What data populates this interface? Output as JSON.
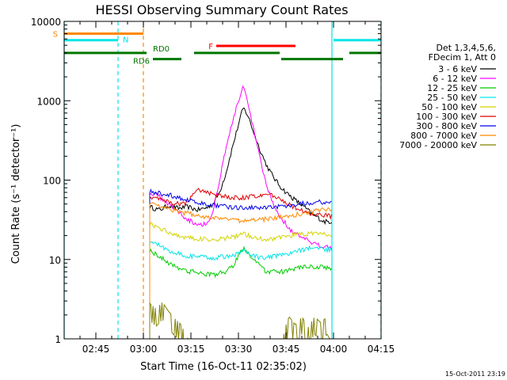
{
  "chart_data": {
    "type": "line",
    "title": "HESSI Observing Summary Count Rates",
    "xlabel": "Start Time (16-Oct-11 02:35:02)",
    "ylabel": "Count Rate (s⁻¹ detector⁻¹)",
    "x_unit": "minutes after 02:35:02",
    "xlim": [
      0,
      100
    ],
    "ylim": [
      1,
      10000
    ],
    "y_scale": "log",
    "x_ticks": [
      {
        "t": 10,
        "label": "02:45"
      },
      {
        "t": 25,
        "label": "03:00"
      },
      {
        "t": 40,
        "label": "03:15"
      },
      {
        "t": 55,
        "label": "03:30"
      },
      {
        "t": 70,
        "label": "03:45"
      },
      {
        "t": 85,
        "label": "04:00"
      },
      {
        "t": 100,
        "label": "04:15"
      }
    ],
    "y_ticks": [
      {
        "v": 1,
        "label": "1"
      },
      {
        "v": 10,
        "label": "10"
      },
      {
        "v": 100,
        "label": "100"
      },
      {
        "v": 1000,
        "label": "1000"
      },
      {
        "v": 10000,
        "label": "10000"
      }
    ],
    "legend": {
      "position": "right",
      "header": [
        "Det 1,3,4,5,6,",
        "FDecim 1, Att 0"
      ]
    },
    "series": [
      {
        "name": "3 - 6 keV",
        "color": "#000000",
        "points": [
          [
            27,
            46
          ],
          [
            30,
            42
          ],
          [
            33,
            48
          ],
          [
            36,
            44
          ],
          [
            39,
            46
          ],
          [
            42,
            42
          ],
          [
            45,
            45
          ],
          [
            47,
            50
          ],
          [
            49,
            70
          ],
          [
            51,
            120
          ],
          [
            53,
            250
          ],
          [
            55,
            500
          ],
          [
            56.5,
            820
          ],
          [
            58,
            650
          ],
          [
            60,
            380
          ],
          [
            62,
            230
          ],
          [
            64,
            150
          ],
          [
            66,
            110
          ],
          [
            68,
            85
          ],
          [
            70,
            70
          ],
          [
            72,
            60
          ],
          [
            74,
            52
          ],
          [
            76,
            45
          ],
          [
            78,
            38
          ],
          [
            80,
            34
          ],
          [
            82,
            30
          ],
          [
            84.5,
            30
          ]
        ]
      },
      {
        "name": "6 - 12 keV",
        "color": "#ff00ff",
        "points": [
          [
            27,
            70
          ],
          [
            30,
            62
          ],
          [
            33,
            50
          ],
          [
            36,
            40
          ],
          [
            39,
            32
          ],
          [
            42,
            28
          ],
          [
            45,
            28
          ],
          [
            47,
            40
          ],
          [
            49,
            100
          ],
          [
            51,
            250
          ],
          [
            53,
            520
          ],
          [
            55,
            1000
          ],
          [
            56.5,
            1500
          ],
          [
            58,
            900
          ],
          [
            60,
            400
          ],
          [
            62,
            170
          ],
          [
            64,
            80
          ],
          [
            66,
            50
          ],
          [
            68,
            35
          ],
          [
            70,
            28
          ],
          [
            72,
            22
          ],
          [
            74,
            20
          ],
          [
            76,
            18
          ],
          [
            78,
            16
          ],
          [
            80,
            15
          ],
          [
            82,
            15
          ],
          [
            84.5,
            14
          ]
        ]
      },
      {
        "name": "12 - 25 keV",
        "color": "#00cc00",
        "points": [
          [
            27,
            13
          ],
          [
            30,
            11
          ],
          [
            33,
            9
          ],
          [
            36,
            8
          ],
          [
            39,
            7
          ],
          [
            42,
            7
          ],
          [
            45,
            6.5
          ],
          [
            48,
            6.5
          ],
          [
            51,
            7
          ],
          [
            53,
            8
          ],
          [
            55,
            11
          ],
          [
            56.5,
            14
          ],
          [
            58,
            12
          ],
          [
            60,
            10
          ],
          [
            62,
            8
          ],
          [
            64,
            7
          ],
          [
            66,
            7
          ],
          [
            68,
            7
          ],
          [
            70,
            7
          ],
          [
            72,
            7.5
          ],
          [
            74,
            8
          ],
          [
            76,
            8
          ],
          [
            78,
            8
          ],
          [
            80,
            8
          ],
          [
            82,
            8
          ],
          [
            84.5,
            7.5
          ]
        ]
      },
      {
        "name": "25 - 50 keV",
        "color": "#00e5e5",
        "points": [
          [
            27,
            17
          ],
          [
            30,
            15
          ],
          [
            33,
            13
          ],
          [
            36,
            12
          ],
          [
            39,
            11
          ],
          [
            42,
            11
          ],
          [
            45,
            10.5
          ],
          [
            48,
            10.5
          ],
          [
            51,
            11
          ],
          [
            53,
            11
          ],
          [
            55,
            12
          ],
          [
            56.5,
            13
          ],
          [
            58,
            12
          ],
          [
            60,
            11
          ],
          [
            62,
            10.5
          ],
          [
            64,
            10.5
          ],
          [
            66,
            11
          ],
          [
            68,
            11
          ],
          [
            70,
            11.5
          ],
          [
            72,
            12
          ],
          [
            74,
            13
          ],
          [
            76,
            13.5
          ],
          [
            78,
            14
          ],
          [
            80,
            14
          ],
          [
            82,
            13.5
          ],
          [
            84.5,
            13
          ]
        ]
      },
      {
        "name": "50 - 100 keV",
        "color": "#d4d400",
        "points": [
          [
            27,
            28
          ],
          [
            30,
            25
          ],
          [
            33,
            22
          ],
          [
            36,
            20
          ],
          [
            39,
            19
          ],
          [
            42,
            18
          ],
          [
            45,
            18
          ],
          [
            48,
            18
          ],
          [
            51,
            18.5
          ],
          [
            53,
            19
          ],
          [
            55,
            20
          ],
          [
            56.5,
            21
          ],
          [
            58,
            20
          ],
          [
            60,
            19
          ],
          [
            62,
            18.5
          ],
          [
            64,
            18
          ],
          [
            66,
            18.5
          ],
          [
            68,
            19
          ],
          [
            70,
            19
          ],
          [
            72,
            20
          ],
          [
            74,
            21
          ],
          [
            76,
            21
          ],
          [
            78,
            21
          ],
          [
            80,
            21
          ],
          [
            82,
            21
          ],
          [
            84.5,
            20
          ]
        ]
      },
      {
        "name": "100 - 300 keV",
        "color": "#e00000",
        "points": [
          [
            27,
            62
          ],
          [
            30,
            58
          ],
          [
            33,
            53
          ],
          [
            36,
            50
          ],
          [
            39,
            52
          ],
          [
            42,
            78
          ],
          [
            44,
            72
          ],
          [
            46,
            68
          ],
          [
            48,
            64
          ],
          [
            50,
            62
          ],
          [
            52,
            61
          ],
          [
            54,
            60
          ],
          [
            56,
            60
          ],
          [
            58,
            61
          ],
          [
            60,
            62
          ],
          [
            62,
            64
          ],
          [
            64,
            66
          ],
          [
            66,
            64
          ],
          [
            68,
            58
          ],
          [
            70,
            52
          ],
          [
            72,
            46
          ],
          [
            74,
            42
          ],
          [
            76,
            40
          ],
          [
            78,
            38
          ],
          [
            80,
            37
          ],
          [
            82,
            36
          ],
          [
            84.5,
            35
          ]
        ]
      },
      {
        "name": "300 - 800 keV",
        "color": "#0000ee",
        "points": [
          [
            27,
            72
          ],
          [
            30,
            68
          ],
          [
            33,
            65
          ],
          [
            36,
            60
          ],
          [
            39,
            56
          ],
          [
            42,
            52
          ],
          [
            45,
            50
          ],
          [
            48,
            48
          ],
          [
            51,
            46
          ],
          [
            54,
            45
          ],
          [
            57,
            45
          ],
          [
            60,
            45
          ],
          [
            63,
            45
          ],
          [
            66,
            46
          ],
          [
            69,
            47
          ],
          [
            72,
            49
          ],
          [
            75,
            51
          ],
          [
            78,
            52
          ],
          [
            81,
            53
          ],
          [
            84.5,
            53
          ]
        ]
      },
      {
        "name": "800 - 7000 keV",
        "color": "#ff8800",
        "points": [
          [
            27,
            52
          ],
          [
            30,
            48
          ],
          [
            33,
            44
          ],
          [
            36,
            40
          ],
          [
            39,
            38
          ],
          [
            42,
            36
          ],
          [
            45,
            34
          ],
          [
            48,
            33
          ],
          [
            51,
            32
          ],
          [
            54,
            31
          ],
          [
            57,
            31
          ],
          [
            60,
            31
          ],
          [
            63,
            32
          ],
          [
            66,
            33
          ],
          [
            69,
            34
          ],
          [
            72,
            36
          ],
          [
            75,
            38
          ],
          [
            78,
            40
          ],
          [
            81,
            42
          ],
          [
            84.5,
            43
          ]
        ]
      },
      {
        "name": "7000 - 20000 keV",
        "color": "#808000",
        "points": [
          [
            27,
            2.8
          ],
          [
            29,
            2.4
          ],
          [
            31,
            2.9
          ],
          [
            33,
            2.2
          ],
          [
            35,
            1.8
          ],
          [
            37,
            1.5
          ],
          [
            38,
            1.2
          ],
          [
            39,
            1.0
          ],
          [
            69,
            1.0
          ],
          [
            70,
            1.5
          ],
          [
            71,
            1.9
          ],
          [
            73,
            1.5
          ],
          [
            75,
            1.9
          ],
          [
            77,
            1.4
          ],
          [
            79,
            1.9
          ],
          [
            81,
            1.6
          ],
          [
            83,
            1.9
          ],
          [
            84.5,
            1.5
          ]
        ]
      }
    ],
    "flags": [
      {
        "label": "S",
        "color": "#ff8800",
        "y": 7000,
        "segments": [
          [
            0,
            25
          ]
        ]
      },
      {
        "label": "N",
        "color": "#00e5e5",
        "y": 5800,
        "segments": [
          [
            0,
            17
          ],
          [
            85,
            100
          ]
        ]
      },
      {
        "label": "F",
        "color": "#ff0000",
        "y": 4900,
        "segments": [
          [
            48,
            73
          ]
        ]
      },
      {
        "label": "RD0",
        "color": "#007700",
        "y": 4000,
        "segments": [
          [
            0,
            26
          ],
          [
            41,
            68
          ],
          [
            90,
            100
          ]
        ]
      },
      {
        "label": "RD6",
        "color": "#007700",
        "y": 3350,
        "segments": [
          [
            28,
            37
          ],
          [
            68.5,
            88
          ]
        ]
      }
    ],
    "vlines": [
      {
        "t": 0,
        "color": "#00e5e5",
        "dash": false
      },
      {
        "t": 17,
        "color": "#00e5e5",
        "dash": true
      },
      {
        "t": 25,
        "color": "#ff8800",
        "dash": true
      },
      {
        "t": 84.5,
        "color": "#00e5e5",
        "dash": false
      },
      {
        "t": 100,
        "color": "#00e5e5",
        "dash": true
      }
    ],
    "footer": "15-Oct-2011 23:19"
  }
}
